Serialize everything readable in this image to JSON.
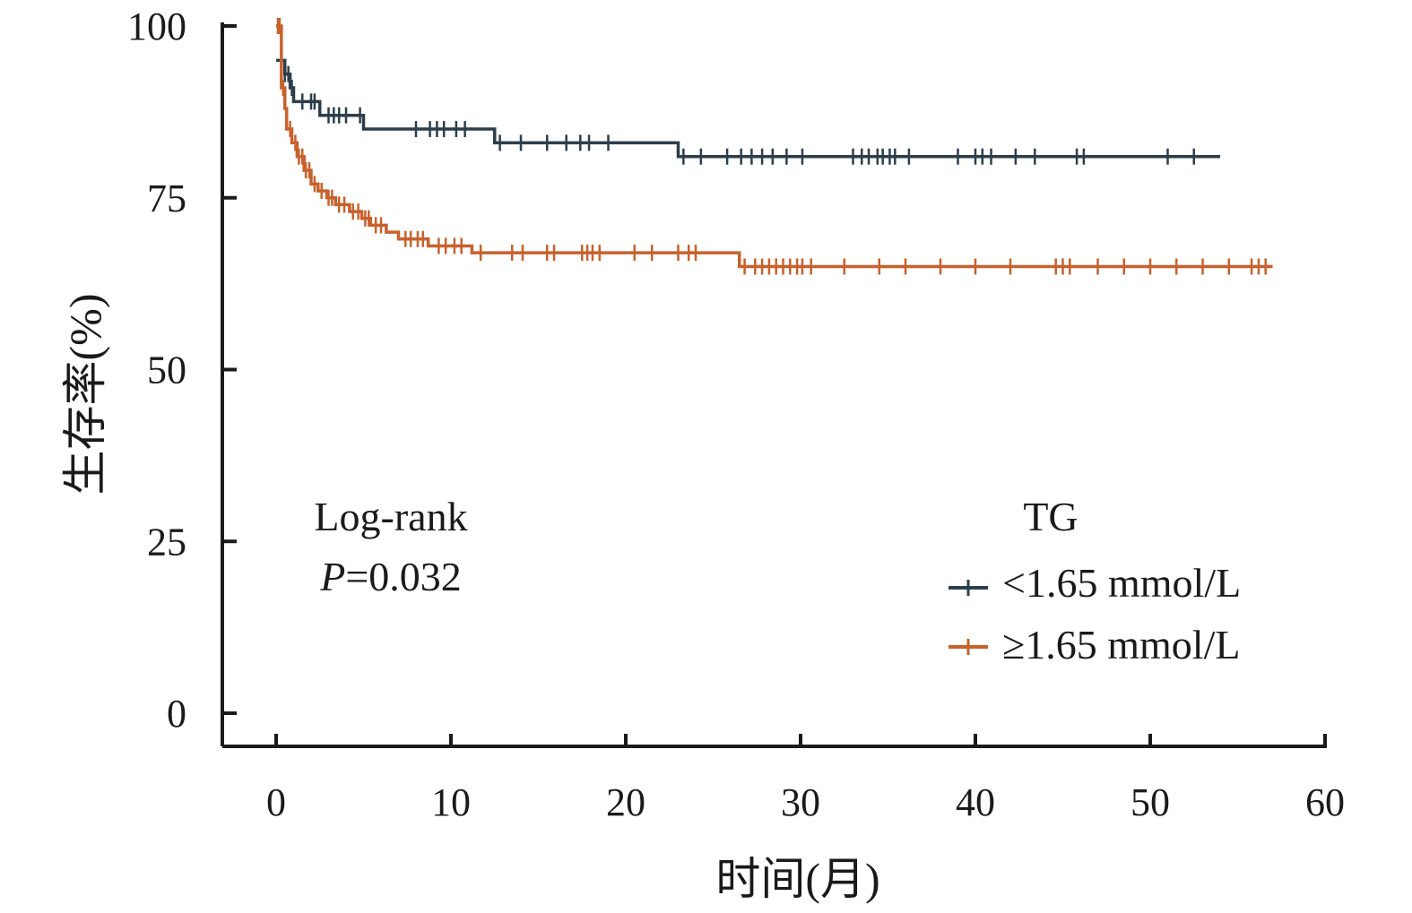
{
  "colors": {
    "series_low": "#2c3e4c",
    "series_high": "#c8612c",
    "axis": "#1a1a1a"
  },
  "chart_data": {
    "type": "line",
    "subtype": "kaplan-meier step curve with censor marks",
    "title": "",
    "xlabel": "时间(月)",
    "ylabel": "生存率(%)",
    "xlim": [
      0,
      60
    ],
    "ylim": [
      0,
      100
    ],
    "x_ticks": [
      0,
      10,
      20,
      30,
      40,
      50,
      60
    ],
    "y_ticks": [
      0,
      25,
      50,
      75,
      100
    ],
    "grid": false,
    "legend": {
      "title": "TG",
      "placement": "lower-right",
      "entries": [
        "<1.65 mmol/L",
        "≥1.65 mmol/L"
      ]
    },
    "annotation": {
      "line1": "Log-rank",
      "p_label": "P",
      "p_value": "=0.032"
    },
    "series": [
      {
        "name": "<1.65 mmol/L",
        "color": "#2c3e4c",
        "steps": [
          [
            0,
            95
          ],
          [
            0.5,
            93
          ],
          [
            0.8,
            91
          ],
          [
            1.0,
            89
          ],
          [
            2.5,
            87
          ],
          [
            5.0,
            85
          ],
          [
            12.5,
            83
          ],
          [
            23.0,
            81
          ]
        ],
        "end_x": 54,
        "censors": [
          0.3,
          0.5,
          0.7,
          0.9,
          1.5,
          2.0,
          2.2,
          3.0,
          3.3,
          3.6,
          4.0,
          4.8,
          8.0,
          8.8,
          9.2,
          9.6,
          10.3,
          10.8,
          12.8,
          14.0,
          15.5,
          16.6,
          17.4,
          17.9,
          19.0,
          23.3,
          24.3,
          25.8,
          26.6,
          27.2,
          27.8,
          28.4,
          29.2,
          30.1,
          33.0,
          33.5,
          33.9,
          34.4,
          34.7,
          35.1,
          35.4,
          36.2,
          39.0,
          40.0,
          40.4,
          40.9,
          42.3,
          43.4,
          45.8,
          46.2,
          51.0,
          52.5
        ]
      },
      {
        "name": "≥1.65 mmol/L",
        "color": "#c8612c",
        "steps": [
          [
            0,
            100
          ],
          [
            0.3,
            91
          ],
          [
            0.5,
            88
          ],
          [
            0.6,
            85
          ],
          [
            0.9,
            83
          ],
          [
            1.2,
            81
          ],
          [
            1.6,
            79
          ],
          [
            2.0,
            77
          ],
          [
            2.4,
            76
          ],
          [
            2.9,
            75
          ],
          [
            3.4,
            74
          ],
          [
            4.2,
            73
          ],
          [
            4.9,
            72
          ],
          [
            5.4,
            71
          ],
          [
            6.3,
            70
          ],
          [
            7.0,
            69
          ],
          [
            8.7,
            68
          ],
          [
            11.2,
            67
          ],
          [
            26.5,
            65
          ]
        ],
        "end_x": 57,
        "censors": [
          0.1,
          0.2,
          0.4,
          0.8,
          1.1,
          1.3,
          1.5,
          1.7,
          1.9,
          2.2,
          2.6,
          3.0,
          3.2,
          3.6,
          3.9,
          4.4,
          4.7,
          5.1,
          5.3,
          5.7,
          6.0,
          7.4,
          7.7,
          8.1,
          8.4,
          9.3,
          9.7,
          10.2,
          10.6,
          11.7,
          13.5,
          14.1,
          15.5,
          15.9,
          17.5,
          17.8,
          18.1,
          18.5,
          20.5,
          21.5,
          23.0,
          23.6,
          24.0,
          26.8,
          27.4,
          27.8,
          28.2,
          28.6,
          29.0,
          29.4,
          29.8,
          30.1,
          30.6,
          32.5,
          34.5,
          36.0,
          38.0,
          40.0,
          42.0,
          44.6,
          45.0,
          45.4,
          47.0,
          48.5,
          50.0,
          51.5,
          53.0,
          54.5,
          55.8,
          56.2,
          56.6
        ]
      }
    ]
  }
}
